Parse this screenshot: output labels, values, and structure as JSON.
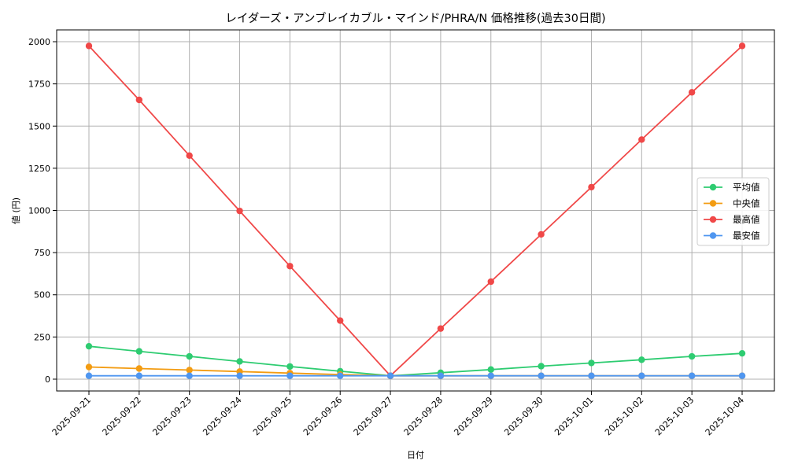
{
  "chart_data": {
    "type": "line",
    "title": "レイダーズ・アンブレイカブル・マインド/PHRA/N 価格推移(過去30日間)",
    "xlabel": "日付",
    "ylabel": "値 (円)",
    "ylim": [
      -70,
      2070
    ],
    "yticks": [
      0,
      250,
      500,
      750,
      1000,
      1250,
      1500,
      1750,
      2000
    ],
    "grid": true,
    "legend_position": "center-right",
    "categories": [
      "2025-09-21",
      "2025-09-22",
      "2025-09-23",
      "2025-09-24",
      "2025-09-25",
      "2025-09-26",
      "2025-09-27",
      "2025-09-28",
      "2025-09-29",
      "2025-09-30",
      "2025-10-01",
      "2025-10-02",
      "2025-10-03",
      "2025-10-04"
    ],
    "series": [
      {
        "name": "平均値",
        "color": "#2ecc71",
        "values": [
          195,
          165,
          135,
          105,
          75,
          47,
          20,
          38,
          57,
          77,
          96,
          115,
          135,
          153
        ]
      },
      {
        "name": "中央値",
        "color": "#f39c12",
        "values": [
          72,
          63,
          54,
          45,
          36,
          27,
          20,
          20,
          20,
          20,
          20,
          20,
          20,
          20
        ]
      },
      {
        "name": "最高値",
        "color": "#f04848",
        "values": [
          1975,
          1655,
          1325,
          997,
          670,
          347,
          20,
          300,
          578,
          858,
          1138,
          1420,
          1700,
          1975
        ]
      },
      {
        "name": "最安値",
        "color": "#4f96f0",
        "values": [
          20,
          20,
          20,
          20,
          20,
          20,
          20,
          20,
          20,
          20,
          20,
          20,
          20,
          20
        ]
      }
    ]
  }
}
